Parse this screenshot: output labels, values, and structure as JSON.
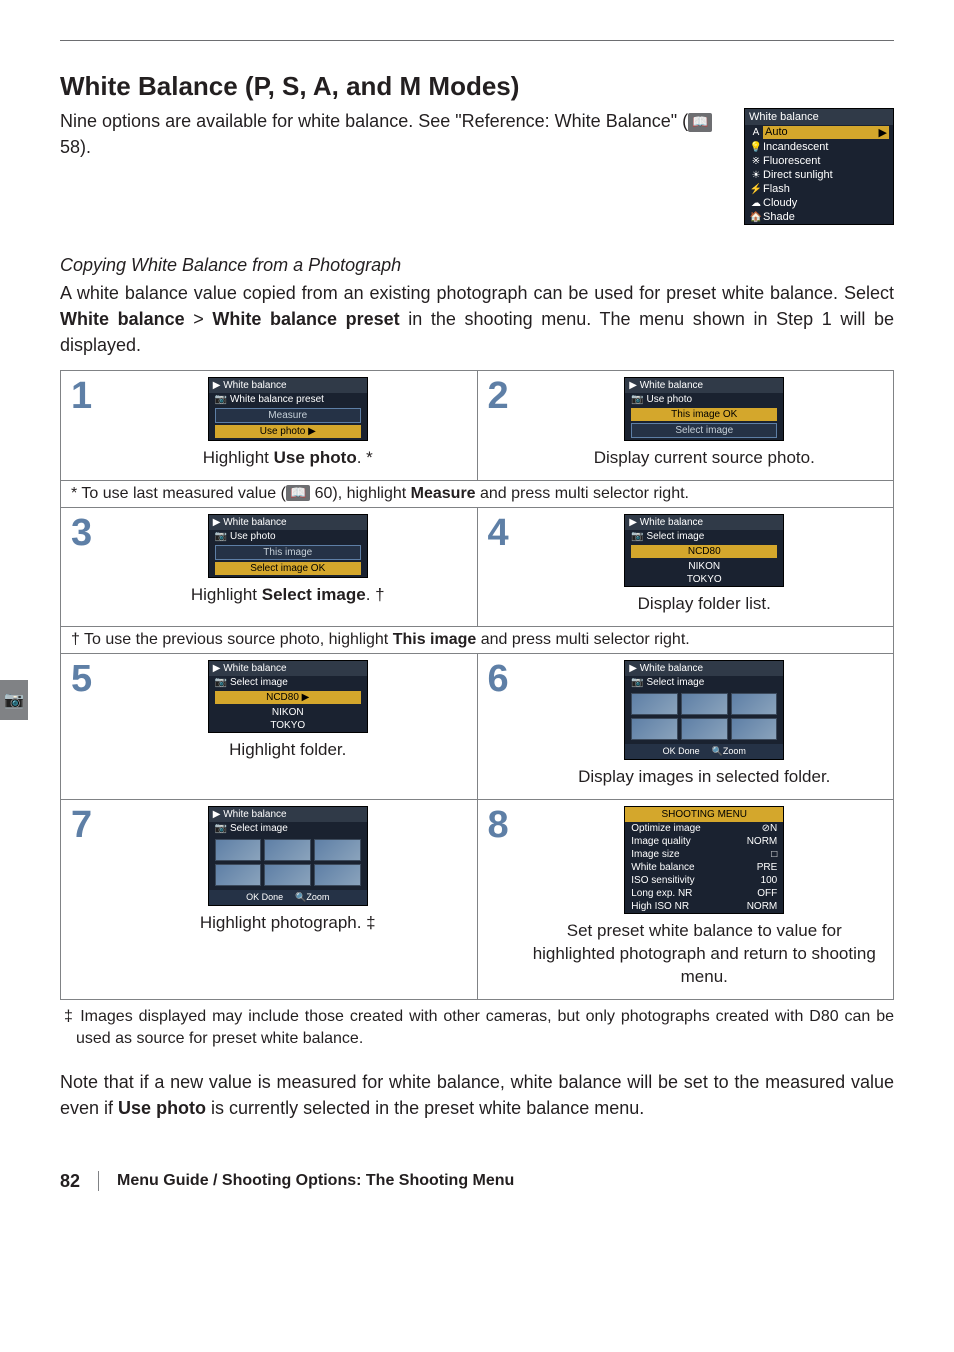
{
  "header": {
    "title": "White Balance (P, S, A, and M Modes)",
    "intro_prefix": "Nine options are available for white balance.  See \"Reference: White Balance\" (",
    "page_icon_label": "📖",
    "intro_page_ref": " 58)."
  },
  "wb_menu": {
    "title": "White balance",
    "items": [
      {
        "icon": "A",
        "label": "Auto",
        "selected": true
      },
      {
        "icon": "💡",
        "label": "Incandescent"
      },
      {
        "icon": "※",
        "label": "Fluorescent"
      },
      {
        "icon": "☀",
        "label": "Direct sunlight"
      },
      {
        "icon": "⚡",
        "label": "Flash"
      },
      {
        "icon": "☁",
        "label": "Cloudy"
      },
      {
        "icon": "🏠",
        "label": "Shade"
      }
    ]
  },
  "section": {
    "subheading": "Copying White Balance from a Photograph",
    "para_before_bold1": "A white balance value copied from an existing photograph can be used for preset white balance.  Select ",
    "bold1": "White balance",
    "chevron": " > ",
    "bold2": "White balance preset",
    "para_after_bold2": " in the shooting menu.  The menu shown in Step 1 will be displayed."
  },
  "steps": [
    {
      "num": "1",
      "lcd": {
        "title": "White balance",
        "sub": "White balance preset",
        "items_boxed": [
          "Measure",
          "Use photo"
        ],
        "highlight_idx": 1,
        "arrow_after_idx": 1
      },
      "caption_pre": "Highlight ",
      "caption_bold": "Use photo",
      "caption_post": ". *"
    },
    {
      "num": "2",
      "lcd": {
        "title": "White balance",
        "sub": "Use photo",
        "footer_items": [
          "This image",
          "Select image"
        ],
        "footer_hl_idx": 0,
        "ok_after": true
      },
      "caption_plain": "Display current source photo."
    },
    {
      "note": true,
      "text_pre": "* To use last measured value (",
      "icon": "📖",
      "text_mid": " 60), highlight ",
      "text_bold": "Measure",
      "text_post": " and press multi selector right."
    },
    {
      "num": "3",
      "lcd": {
        "title": "White balance",
        "sub": "Use photo",
        "footer_items": [
          "This image",
          "Select image"
        ],
        "footer_hl_idx": 1,
        "ok_after": true
      },
      "caption_pre": "Highlight ",
      "caption_bold": "Select image",
      "caption_post": ". †"
    },
    {
      "num": "4",
      "lcd": {
        "title": "White balance",
        "sub": "Select image",
        "folders": [
          "NCD80",
          "NIKON",
          "TOKYO"
        ],
        "folder_hl_idx": 0
      },
      "caption_plain": "Display folder list."
    },
    {
      "note": true,
      "text_pre": "† To use the previous source photo, highlight ",
      "text_bold": "This image",
      "text_post": " and press multi selector right."
    },
    {
      "num": "5",
      "lcd": {
        "title": "White balance",
        "sub": "Select image",
        "folders": [
          "NCD80",
          "NIKON",
          "TOKYO"
        ],
        "folder_hl_idx": 0,
        "arrow": true
      },
      "caption_plain": "Highlight folder."
    },
    {
      "num": "6",
      "lcd": {
        "title": "White balance",
        "sub": "Select image",
        "thumbs": 6,
        "footer_labels": [
          "OK Done",
          "🔍Zoom"
        ]
      },
      "caption_plain": "Display images in selected folder."
    },
    {
      "num": "7",
      "lcd": {
        "title": "White balance",
        "sub": "Select image",
        "thumbs": 6,
        "footer_labels": [
          "OK Done",
          "🔍Zoom"
        ]
      },
      "caption_plain": "Highlight photograph.  ‡"
    },
    {
      "num": "8",
      "lcd": {
        "shooting_menu": true,
        "title": "SHOOTING MENU",
        "rows": [
          [
            "Optimize image",
            "⊘N"
          ],
          [
            "Image quality",
            "NORM"
          ],
          [
            "Image size",
            "□"
          ],
          [
            "White balance",
            "PRE"
          ],
          [
            "ISO sensitivity",
            "100"
          ],
          [
            "Long exp. NR",
            "OFF"
          ],
          [
            "High ISO NR",
            "NORM"
          ]
        ]
      },
      "caption_plain": "Set preset white balance to value for highlighted photograph and return to shooting menu."
    }
  ],
  "footnote": "‡ Images displayed may include those created with other cameras, but only photographs created with D80 can be used as source for preset white balance.",
  "closing": {
    "pre": "Note that if a new value is measured for white balance, white balance will be set to the measured value even if ",
    "bold": "Use photo",
    "post": " is currently selected in the preset white balance menu."
  },
  "footer": {
    "page": "82",
    "title": "Menu Guide / Shooting Options: The Shooting Menu"
  },
  "side_tab_icon": "📷",
  "colors": {
    "accent_blue": "#5e7fa6",
    "highlight": "#d4a72c",
    "lcd_bg": "#1a2230",
    "rule": "#6d6e71"
  }
}
